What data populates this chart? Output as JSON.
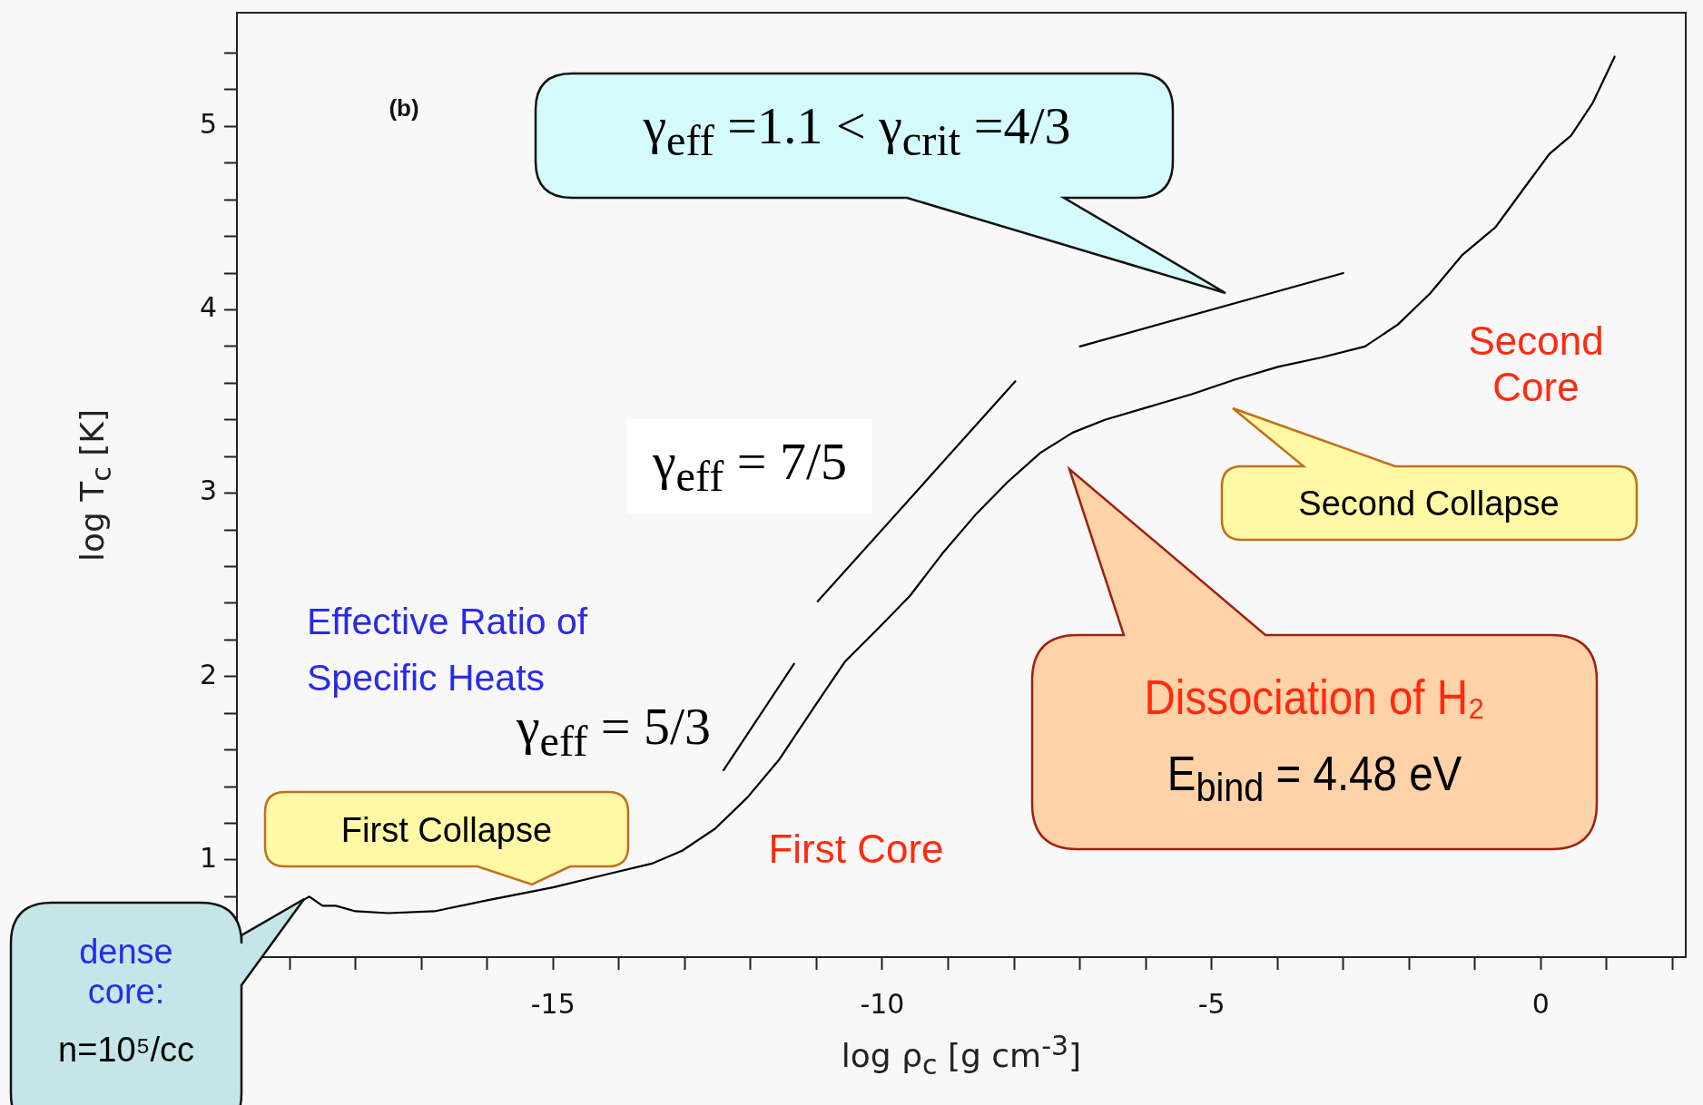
{
  "chart_data": {
    "type": "line",
    "xlabel": "log ρ$_{c}$ [g cm$^{-3}$]",
    "ylabel": "log T$_{c}$ [K]",
    "xlim": [
      -19.8,
      2.2
    ],
    "ylim": [
      0.47,
      5.62
    ],
    "xticks": [
      {
        "value": -19,
        "label": null
      },
      {
        "value": -18,
        "label": null
      },
      {
        "value": -17,
        "label": null
      },
      {
        "value": -16,
        "label": null
      },
      -15,
      {
        "value": -14,
        "label": null
      },
      {
        "value": -13,
        "label": null
      },
      {
        "value": -12,
        "label": null
      },
      {
        "value": -11,
        "label": null
      },
      -10,
      {
        "value": -9,
        "label": null
      },
      {
        "value": -8,
        "label": null
      },
      {
        "value": -7,
        "label": null
      },
      {
        "value": -6,
        "label": null
      },
      -5,
      {
        "value": -4,
        "label": null
      },
      {
        "value": -3,
        "label": null
      },
      {
        "value": -2,
        "label": null
      },
      {
        "value": -1,
        "label": null
      },
      0,
      {
        "value": 1,
        "label": null
      },
      {
        "value": 2,
        "label": null
      }
    ],
    "yticks": [
      {
        "value": 0.6,
        "label": null
      },
      {
        "value": 0.8,
        "label": null
      },
      1,
      {
        "value": 1.2,
        "label": null
      },
      {
        "value": 1.4,
        "label": null
      },
      {
        "value": 1.6,
        "label": null
      },
      {
        "value": 1.8,
        "label": null
      },
      2,
      {
        "value": 2.2,
        "label": null
      },
      {
        "value": 2.4,
        "label": null
      },
      {
        "value": 2.6,
        "label": null
      },
      {
        "value": 2.8,
        "label": null
      },
      3,
      {
        "value": 3.2,
        "label": null
      },
      {
        "value": 3.4,
        "label": null
      },
      {
        "value": 3.6,
        "label": null
      },
      {
        "value": 3.8,
        "label": null
      },
      4,
      {
        "value": 4.2,
        "label": null
      },
      {
        "value": 4.4,
        "label": null
      },
      {
        "value": 4.6,
        "label": null
      },
      {
        "value": 4.8,
        "label": null
      },
      5,
      {
        "value": 5.2,
        "label": null
      },
      {
        "value": 5.4,
        "label": null
      }
    ],
    "grid": false,
    "legend": false,
    "marker": "none",
    "line_style": "solid",
    "series": [
      {
        "color": "#000000",
        "x": [
          -18.8,
          -18.7,
          -18.5,
          -18.3,
          -18.0,
          -17.5,
          -16.8,
          -16.0,
          -15.0,
          -14.2,
          -13.5,
          -13.04,
          -12.54,
          -12.05,
          -11.56,
          -11.06,
          -10.57,
          -10.07,
          -9.58,
          -9.09,
          -8.59,
          -8.1,
          -7.6,
          -7.11,
          -6.62,
          -5.96,
          -5.3,
          -4.64,
          -3.98,
          -3.33,
          -2.67,
          -2.17,
          -1.68,
          -1.19,
          -0.69,
          -0.2,
          0.13,
          0.46,
          0.79,
          1.12
        ],
        "values": [
          0.78,
          0.8,
          0.75,
          0.75,
          0.72,
          0.71,
          0.72,
          0.78,
          0.85,
          0.92,
          0.98,
          1.05,
          1.17,
          1.34,
          1.55,
          1.82,
          2.08,
          2.26,
          2.44,
          2.67,
          2.88,
          3.06,
          3.22,
          3.33,
          3.4,
          3.47,
          3.54,
          3.62,
          3.69,
          3.74,
          3.8,
          3.92,
          4.09,
          4.3,
          4.45,
          4.69,
          4.85,
          4.95,
          5.13,
          5.38
        ]
      },
      {
        "color": "#000000",
        "x": [
          -12.41,
          -11.34
        ],
        "values": [
          1.49,
          2.07
        ]
      },
      {
        "color": "#000000",
        "x": [
          -10.98,
          -7.98
        ],
        "values": [
          2.41,
          3.61
        ]
      },
      {
        "color": "#000000",
        "x": [
          -7.0,
          -3.0
        ],
        "values": [
          3.8,
          4.2
        ]
      }
    ],
    "annotations": [
      "(b)",
      "γ$_{eff}$ =1.1 < γ$_{crit}$ =4/3",
      "γ$_{eff}$ = 7/5",
      "γ$_{eff}$ = 5/3",
      "Effective Ratio of Specific Heats",
      "First Collapse",
      "First Core",
      "Second Collapse",
      "Second Core",
      "Dissociation of H₂",
      "E$_{bind}$ = 4.48 eV",
      "dense core:",
      "n=10⁵/cc"
    ]
  }
}
